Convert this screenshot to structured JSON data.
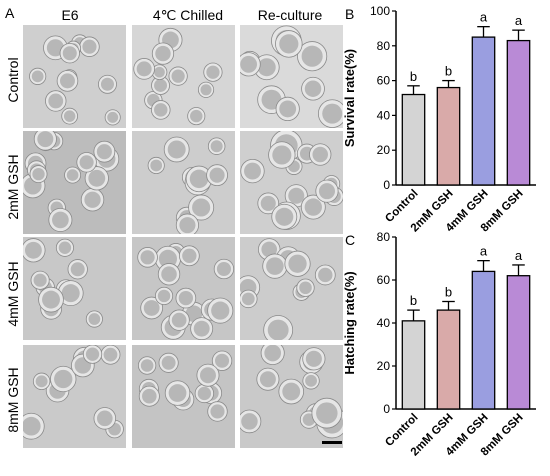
{
  "panel_a": {
    "letter": "A",
    "columns": [
      "E6",
      "4℃ Chilled",
      "Re-culture"
    ],
    "rows": [
      "Control",
      "2mM GSH",
      "4mM GSH",
      "8mM GSH"
    ]
  },
  "chart_data": [
    {
      "type": "bar",
      "letter": "B",
      "categories": [
        "Control",
        "2mM GSH",
        "4mM GSH",
        "8mM GSH"
      ],
      "values": [
        52,
        56,
        85,
        83
      ],
      "errors": [
        5,
        4,
        6,
        6
      ],
      "significance": [
        "b",
        "b",
        "a",
        "a"
      ],
      "colors": [
        "#d4d4d4",
        "#d9aaa9",
        "#9a9ee0",
        "#b98ad6"
      ],
      "xlabel": "",
      "ylabel": "Survival rate(%)",
      "ylim": [
        0,
        100
      ],
      "yticks": [
        0,
        20,
        40,
        60,
        80,
        100
      ]
    },
    {
      "type": "bar",
      "letter": "C",
      "categories": [
        "Control",
        "2mM GSH",
        "4mM GSH",
        "8mM GSH"
      ],
      "values": [
        41,
        46,
        64,
        62
      ],
      "errors": [
        5,
        4,
        5,
        5
      ],
      "significance": [
        "b",
        "b",
        "a",
        "a"
      ],
      "colors": [
        "#d4d4d4",
        "#d9aaa9",
        "#9a9ee0",
        "#b98ad6"
      ],
      "xlabel": "",
      "ylabel": "Hatching rate(%)",
      "ylim": [
        0,
        80
      ],
      "yticks": [
        0,
        20,
        40,
        60,
        80
      ]
    }
  ]
}
